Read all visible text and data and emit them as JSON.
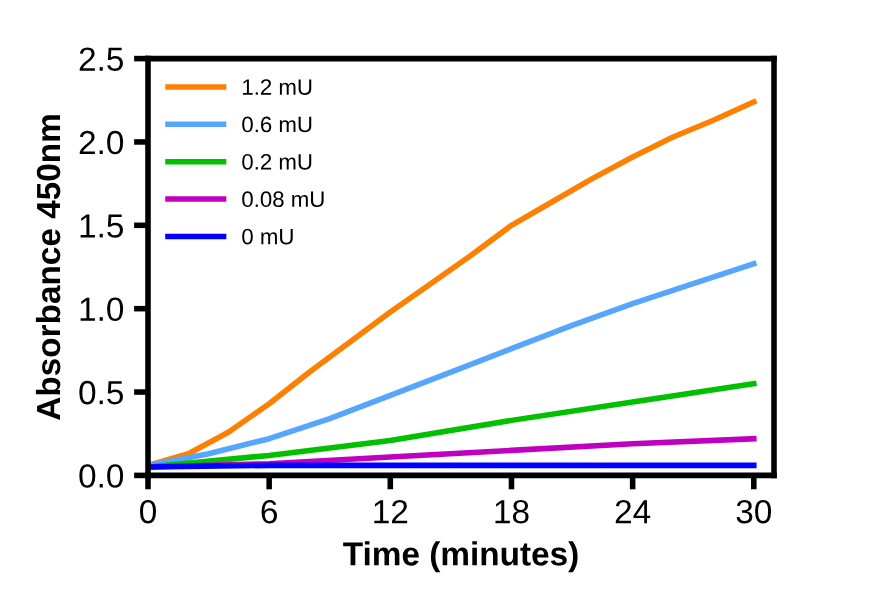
{
  "chart_data": {
    "type": "line",
    "xlabel": "Time (minutes)",
    "ylabel": "Absorbance 450nm",
    "xlim": [
      0,
      31
    ],
    "xticks": [
      0,
      6,
      12,
      18,
      24,
      30
    ],
    "ylim": [
      0,
      2.5
    ],
    "yticks": [
      {
        "value": 0,
        "label": "0.0"
      },
      0.5,
      {
        "value": 1,
        "label": "1.0"
      },
      1.5,
      {
        "value": 2,
        "label": "2.0"
      },
      2.5
    ],
    "legend": "top left",
    "grid": false,
    "marker": "none",
    "line_style": "solid",
    "series": [
      {
        "name": "1.2 mU",
        "color": "#ff7f00",
        "x": [
          0,
          2,
          4,
          6,
          8,
          10,
          12,
          14,
          16,
          18,
          20,
          22,
          24,
          26,
          28,
          30
        ],
        "values": [
          0.06,
          0.13,
          0.26,
          0.43,
          0.62,
          0.8,
          0.98,
          1.15,
          1.32,
          1.5,
          1.64,
          1.78,
          1.91,
          2.03,
          2.13,
          2.24
        ]
      },
      {
        "name": "0.6 mU",
        "color": "#56a5ff",
        "x": [
          0,
          3,
          6,
          9,
          12,
          15,
          18,
          21,
          24,
          27,
          30
        ],
        "values": [
          0.06,
          0.13,
          0.22,
          0.34,
          0.48,
          0.62,
          0.76,
          0.9,
          1.03,
          1.15,
          1.27
        ]
      },
      {
        "name": "0.2 mU",
        "color": "#00c000",
        "x": [
          0,
          6,
          12,
          18,
          24,
          30
        ],
        "values": [
          0.05,
          0.12,
          0.21,
          0.33,
          0.44,
          0.55
        ]
      },
      {
        "name": "0.08 mU",
        "color": "#c000c0",
        "x": [
          0,
          6,
          12,
          18,
          24,
          30
        ],
        "values": [
          0.05,
          0.07,
          0.11,
          0.15,
          0.19,
          0.22
        ]
      },
      {
        "name": "0 mU",
        "color": "#0000ff",
        "x": [
          0,
          6,
          12,
          18,
          24,
          30
        ],
        "values": [
          0.05,
          0.06,
          0.06,
          0.06,
          0.06,
          0.06
        ]
      }
    ]
  }
}
